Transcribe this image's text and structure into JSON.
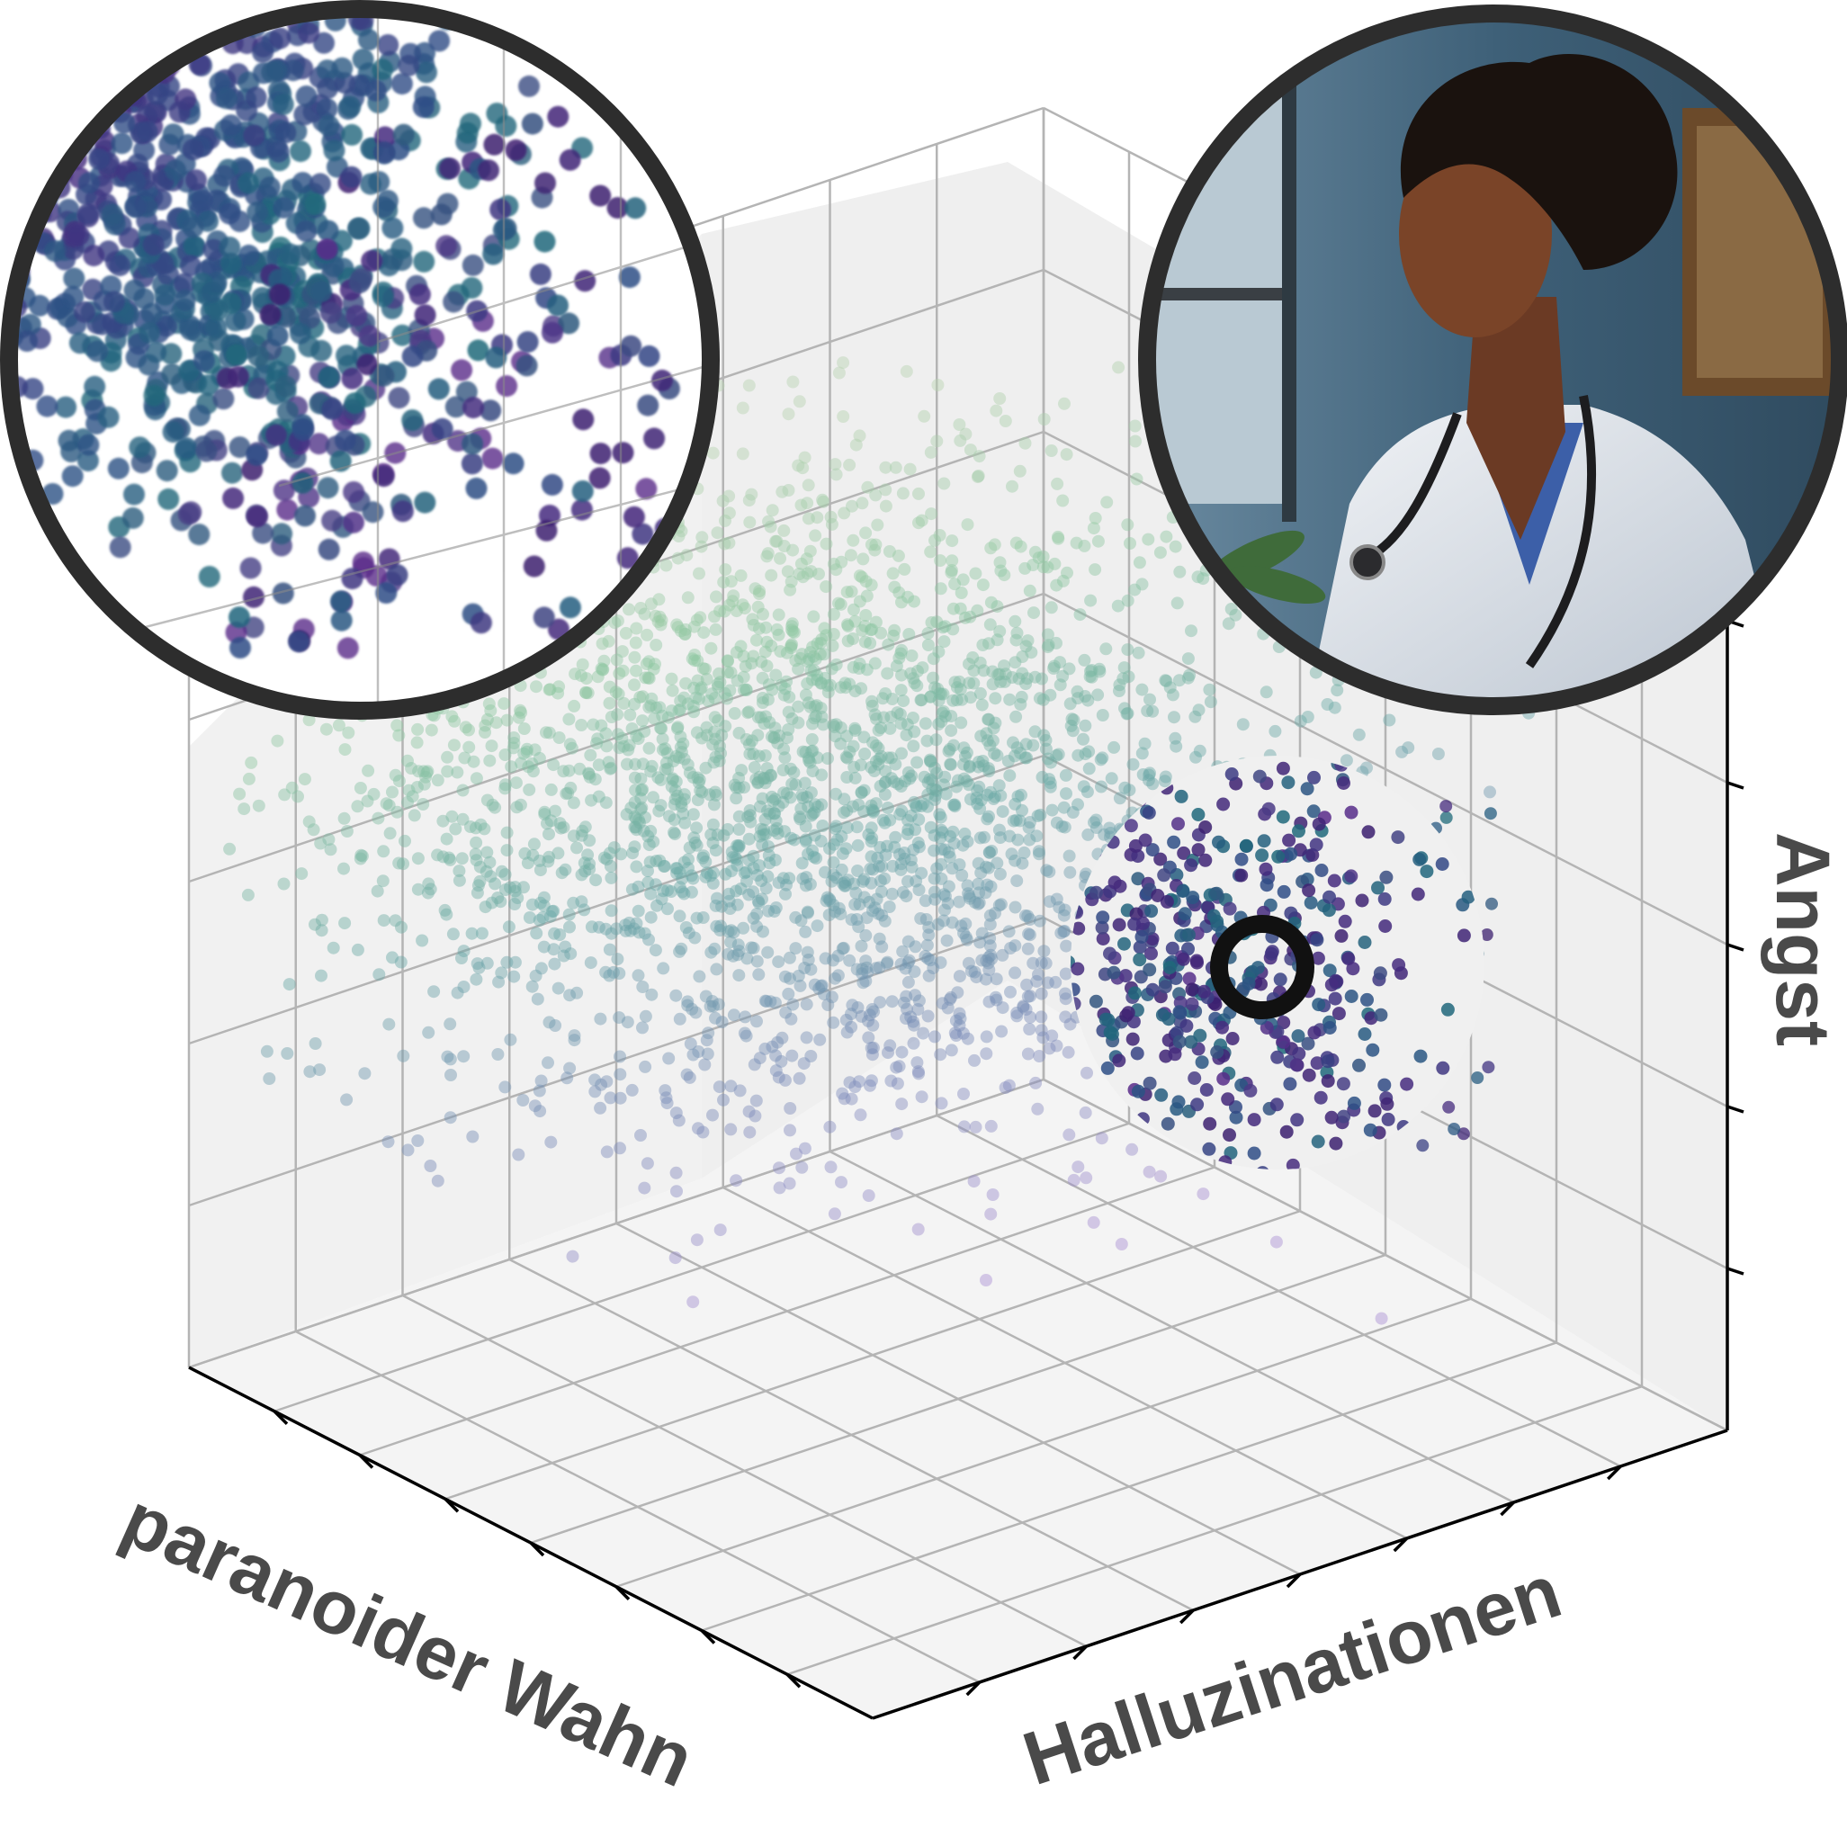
{
  "chart_data": {
    "type": "scatter",
    "projection": "3d",
    "title": "",
    "axes": {
      "x": {
        "label": "paranoider Wahn",
        "ticks": 8
      },
      "y": {
        "label": "Halluzinationen",
        "ticks": 8
      },
      "z": {
        "label": "Angst",
        "ticks": 6
      }
    },
    "tick_labels_shown": false,
    "grid": true,
    "point_count": 3000,
    "color_scale": [
      "#b9d3b1",
      "#8fc7a2",
      "#6aa8a6",
      "#7a8bb8",
      "#a98fd2"
    ],
    "highlight_color_scale": [
      "#3b1f6e",
      "#462c7f",
      "#2f4e86",
      "#1f6a7a",
      "#5a2a8a"
    ],
    "point_cloud_center": {
      "x": 0.45,
      "y": 0.55,
      "z": 0.55
    },
    "annotations": {
      "magnifier_callout": "zoomed view of highlighted cluster",
      "highlight_ring": "selected data point",
      "portrait": "illustration of a physician with stethoscope"
    }
  }
}
